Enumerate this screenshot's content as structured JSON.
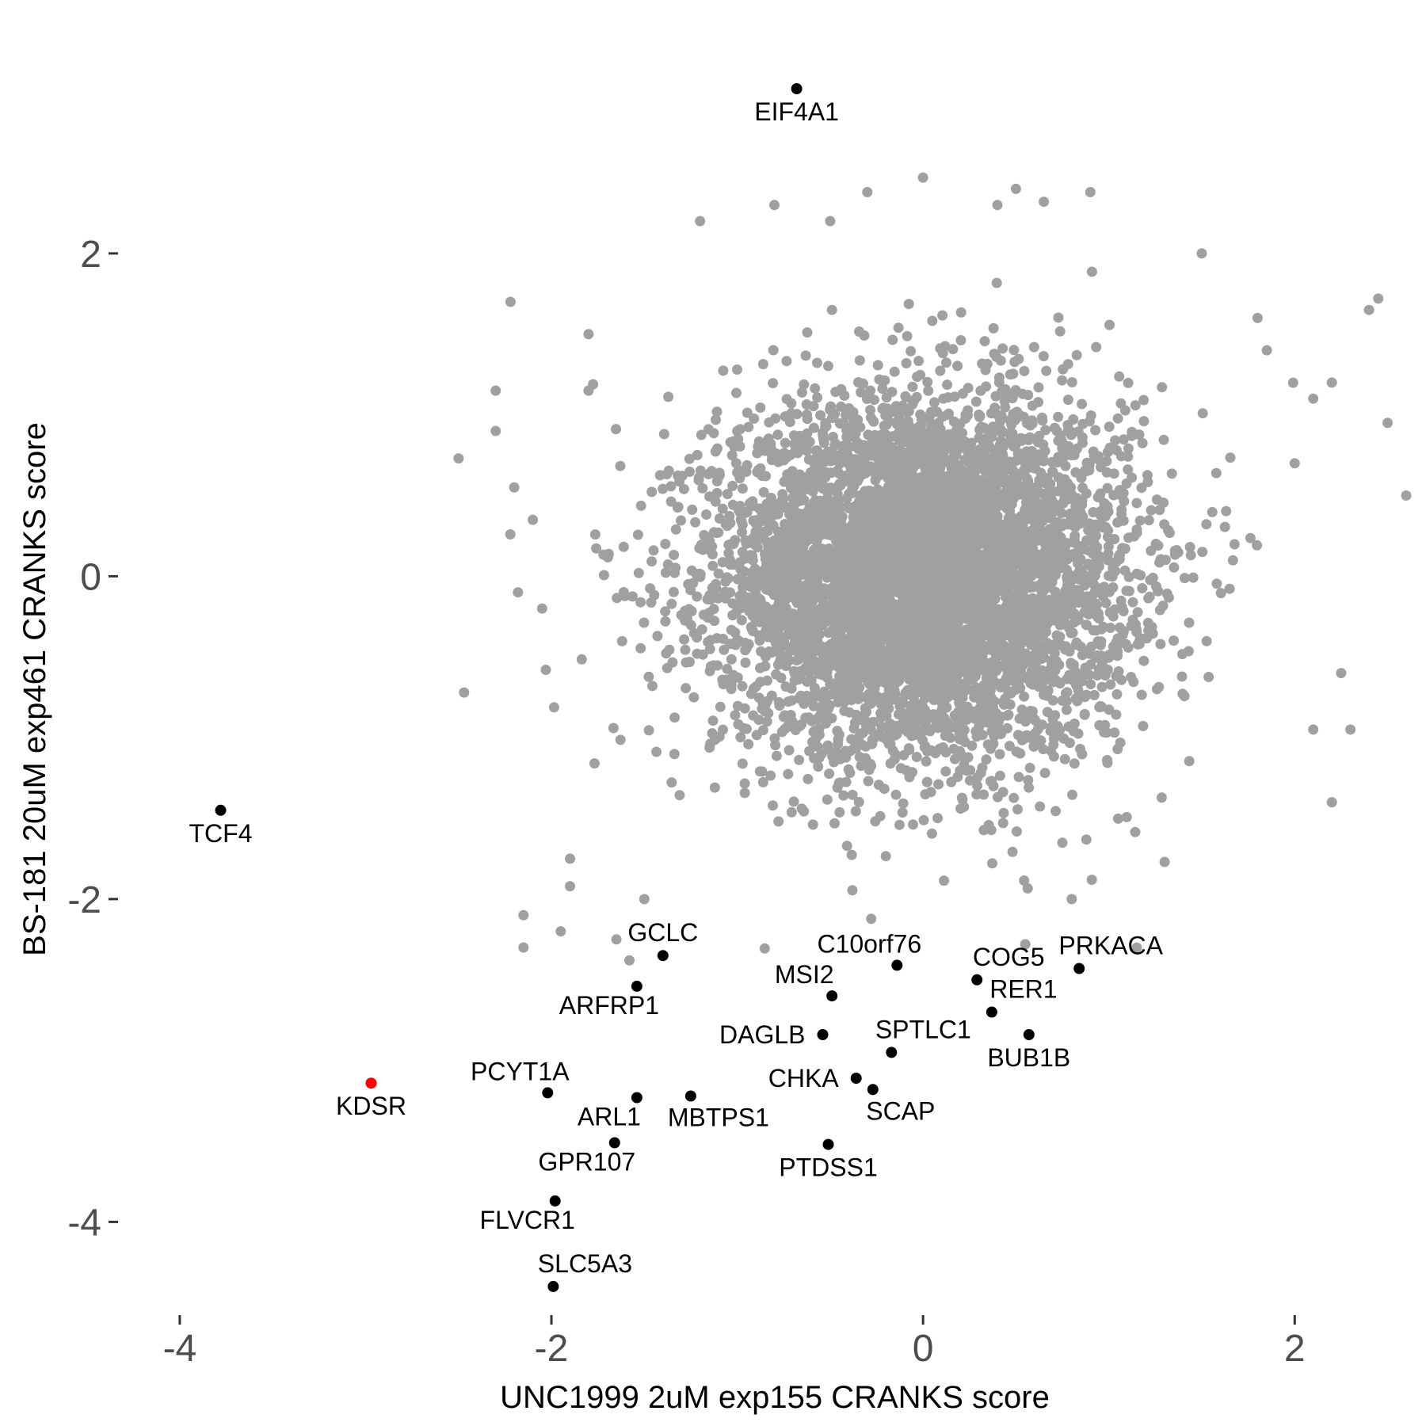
{
  "chart_data": {
    "type": "scatter",
    "title": "",
    "xlabel": "UNC1999 2uM exp155 CRANKS score",
    "ylabel": "BS-181 20uM exp461 CRANKS score",
    "xlim": [
      -4.2,
      2.6
    ],
    "ylim": [
      -4.7,
      3.3
    ],
    "x_ticks": [
      -4,
      -2,
      0,
      2
    ],
    "y_ticks": [
      -4,
      -2,
      0,
      2
    ],
    "x_tick_labels": [
      "-4",
      "-2",
      "0",
      "2"
    ],
    "y_tick_labels": [
      "-4",
      "-2",
      "0",
      "2"
    ],
    "grid": false,
    "legend": "none",
    "background_points": {
      "description_only_for_render": "",
      "color": "#a0a0a0",
      "count": 6000,
      "center": [
        0,
        0
      ],
      "sd": [
        0.55,
        0.55
      ],
      "outliers": [
        [
          -2.5,
          0.73
        ],
        [
          -2.47,
          -0.72
        ],
        [
          -2.3,
          1.15
        ],
        [
          -2.3,
          0.9
        ],
        [
          -2.22,
          1.7
        ],
        [
          -2.2,
          0.55
        ],
        [
          -2.18,
          -0.1
        ],
        [
          -2.15,
          -2.1
        ],
        [
          -2.15,
          -2.3
        ],
        [
          -2.1,
          0.35
        ],
        [
          -2.05,
          -0.2
        ],
        [
          -2.03,
          -0.58
        ],
        [
          -1.95,
          -2.2
        ],
        [
          -1.9,
          -1.75
        ],
        [
          -1.9,
          -1.92
        ],
        [
          -1.8,
          1.5
        ],
        [
          -1.8,
          1.15
        ],
        [
          -1.65,
          -2.25
        ],
        [
          -1.58,
          -2.38
        ],
        [
          -1.5,
          -2.0
        ],
        [
          1.8,
          1.6
        ],
        [
          1.85,
          1.4
        ],
        [
          2.0,
          0.7
        ],
        [
          2.1,
          1.1
        ],
        [
          2.2,
          1.2
        ],
        [
          2.4,
          1.65
        ],
        [
          2.45,
          1.72
        ],
        [
          2.5,
          0.95
        ],
        [
          2.6,
          0.5
        ],
        [
          2.25,
          -0.6
        ],
        [
          2.2,
          -1.4
        ],
        [
          2.1,
          -0.95
        ],
        [
          2.3,
          -0.95
        ],
        [
          -1.2,
          2.2
        ],
        [
          -0.8,
          2.3
        ],
        [
          -0.5,
          2.2
        ],
        [
          0.0,
          2.47
        ],
        [
          0.4,
          2.3
        ],
        [
          0.5,
          2.4
        ],
        [
          0.65,
          2.32
        ],
        [
          0.9,
          2.38
        ],
        [
          1.5,
          2.0
        ],
        [
          -0.3,
          2.38
        ],
        [
          1.3,
          -1.77
        ],
        [
          1.15,
          -2.3
        ],
        [
          0.55,
          -2.28
        ],
        [
          0.8,
          -2.0
        ]
      ]
    },
    "labeled_points": [
      {
        "label": "EIF4A1",
        "x": -0.68,
        "y": 3.02,
        "color": "#000000",
        "label_pos": "below"
      },
      {
        "label": "TCF4",
        "x": -3.78,
        "y": -1.45,
        "color": "#000000",
        "label_pos": "below"
      },
      {
        "label": "KDSR",
        "x": -2.97,
        "y": -3.14,
        "color": "#ff0000",
        "label_pos": "below"
      },
      {
        "label": "GCLC",
        "x": -1.4,
        "y": -2.35,
        "color": "#000000",
        "label_pos": "above"
      },
      {
        "label": "ARFRP1",
        "x": -1.54,
        "y": -2.54,
        "color": "#000000",
        "label_pos": "below-left"
      },
      {
        "label": "C10orf76",
        "x": -0.14,
        "y": -2.41,
        "color": "#000000",
        "label_pos": "above-left"
      },
      {
        "label": "MSI2",
        "x": -0.49,
        "y": -2.6,
        "color": "#000000",
        "label_pos": "above-left"
      },
      {
        "label": "DAGLB",
        "x": -0.54,
        "y": -2.84,
        "color": "#000000",
        "label_pos": "left"
      },
      {
        "label": "COG5",
        "x": 0.29,
        "y": -2.5,
        "color": "#000000",
        "label_pos": "above-right"
      },
      {
        "label": "PRKACA",
        "x": 0.84,
        "y": -2.43,
        "color": "#000000",
        "label_pos": "above-right"
      },
      {
        "label": "RER1",
        "x": 0.37,
        "y": -2.7,
        "color": "#000000",
        "label_pos": "above-right"
      },
      {
        "label": "BUB1B",
        "x": 0.57,
        "y": -2.84,
        "color": "#000000",
        "label_pos": "below"
      },
      {
        "label": "SPTLC1",
        "x": -0.17,
        "y": -2.95,
        "color": "#000000",
        "label_pos": "above-right"
      },
      {
        "label": "CHKA",
        "x": -0.36,
        "y": -3.11,
        "color": "#000000",
        "label_pos": "left"
      },
      {
        "label": "SCAP",
        "x": -0.27,
        "y": -3.18,
        "color": "#000000",
        "label_pos": "below-right"
      },
      {
        "label": "PCYT1A",
        "x": -2.02,
        "y": -3.2,
        "color": "#000000",
        "label_pos": "above-left"
      },
      {
        "label": "ARL1",
        "x": -1.54,
        "y": -3.23,
        "color": "#000000",
        "label_pos": "below-left"
      },
      {
        "label": "MBTPS1",
        "x": -1.25,
        "y": -3.22,
        "color": "#000000",
        "label_pos": "below-right"
      },
      {
        "label": "PTDSS1",
        "x": -0.51,
        "y": -3.52,
        "color": "#000000",
        "label_pos": "below"
      },
      {
        "label": "GPR107",
        "x": -1.66,
        "y": -3.51,
        "color": "#000000",
        "label_pos": "below-left"
      },
      {
        "label": "FLVCR1",
        "x": -1.98,
        "y": -3.87,
        "color": "#000000",
        "label_pos": "below-left"
      },
      {
        "label": "SLC5A3",
        "x": -1.99,
        "y": -4.4,
        "color": "#000000",
        "label_pos": "above-right"
      }
    ]
  }
}
